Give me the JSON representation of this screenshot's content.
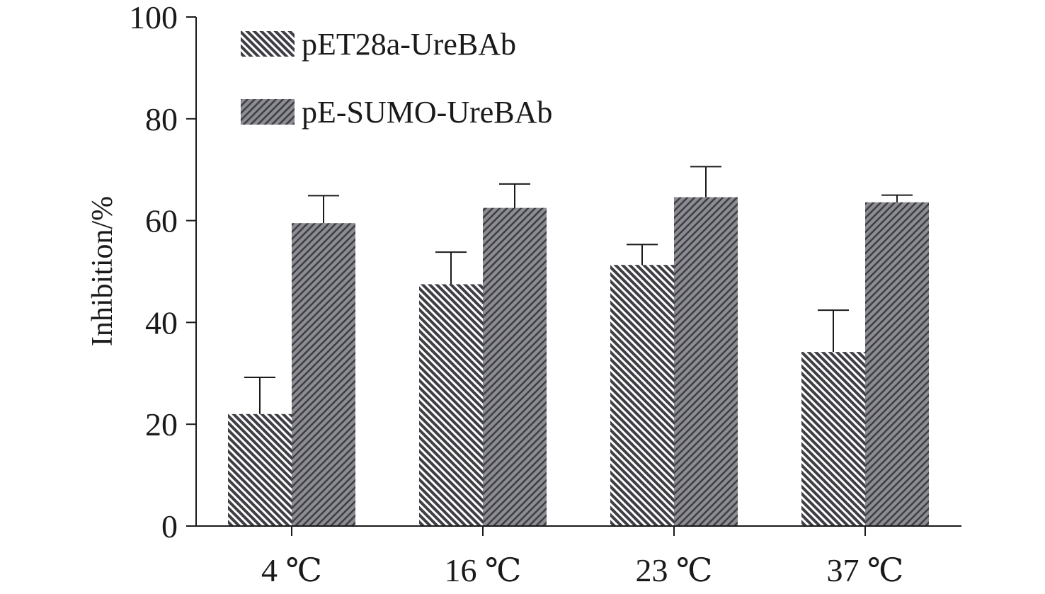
{
  "colors": {
    "bar_fill": "#8c8d92",
    "bar_stroke_dark": "#3f3f45",
    "hatch_light": "#ffffff",
    "axis": "#1a1a1a",
    "error_bar": "#1a1a1a",
    "text": "#1a1a1a"
  },
  "chart_data": {
    "type": "bar",
    "title": "",
    "xlabel": "",
    "ylabel": "Inhibition/%",
    "ylim": [
      0,
      100
    ],
    "yticks": [
      "0",
      "20",
      "40",
      "60",
      "80",
      "100"
    ],
    "categories": [
      "4 ℃",
      "16 ℃",
      "23 ℃",
      "37 ℃"
    ],
    "grid": false,
    "legend_position": "top-left",
    "series": [
      {
        "name": "pET28a-UreBAb",
        "hatch": "backslash",
        "values": [
          22,
          47.5,
          51.3,
          34.2
        ],
        "errors": [
          7.2,
          6.3,
          4.0,
          8.2
        ]
      },
      {
        "name": "pE-SUMO-UreBAb",
        "hatch": "slash",
        "values": [
          59.5,
          62.5,
          64.6,
          63.6
        ],
        "errors": [
          5.4,
          4.7,
          6.0,
          1.4
        ]
      }
    ]
  }
}
